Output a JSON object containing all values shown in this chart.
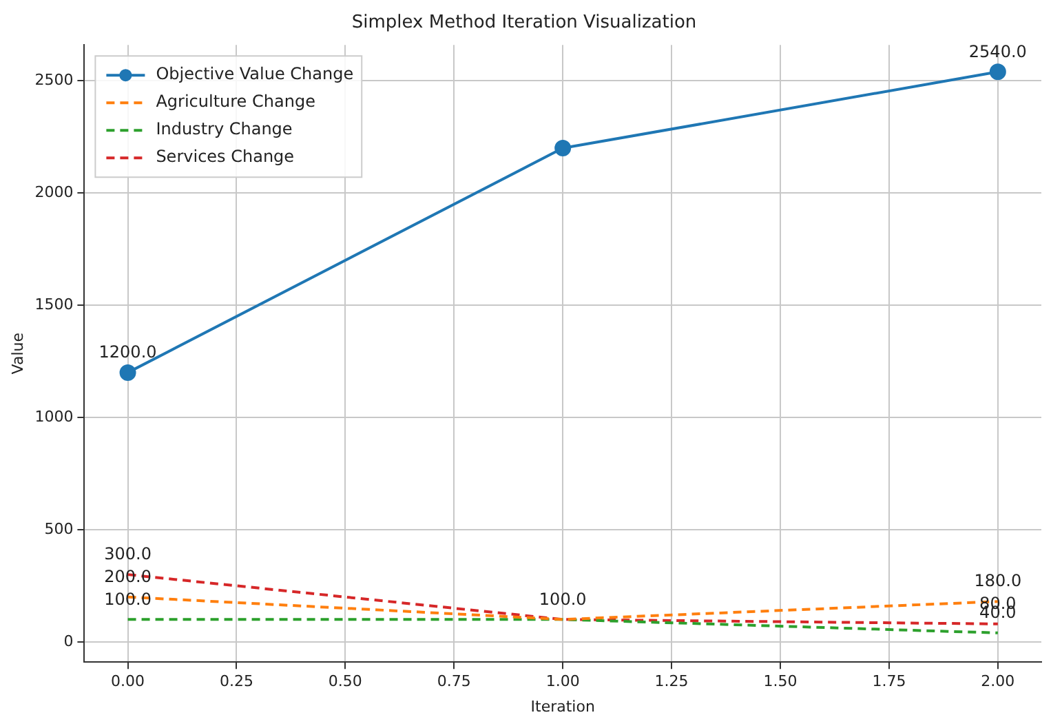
{
  "chart_data": {
    "type": "line",
    "title": "Simplex Method Iteration Visualization",
    "xlabel": "Iteration",
    "ylabel": "Value",
    "x": [
      0,
      1,
      2
    ],
    "series": [
      {
        "name": "Objective Value Change",
        "color": "#1f77b4",
        "values": [
          1200,
          2200,
          2540
        ],
        "marker": "circle",
        "line_style": "solid",
        "value_labels": [
          "1200.0",
          null,
          "2540.0"
        ]
      },
      {
        "name": "Agriculture Change",
        "color": "#ff7f0e",
        "values": [
          200,
          100,
          180
        ],
        "marker": "none",
        "line_style": "dashed",
        "value_labels": [
          "200.0",
          null,
          "180.0"
        ]
      },
      {
        "name": "Industry Change",
        "color": "#2ca02c",
        "values": [
          100,
          100,
          40
        ],
        "marker": "none",
        "line_style": "dashed",
        "value_labels": [
          "100.0",
          null,
          "40.0"
        ]
      },
      {
        "name": "Services Change",
        "color": "#d62728",
        "values": [
          300,
          100,
          80
        ],
        "marker": "none",
        "line_style": "dashed",
        "value_labels": [
          "300.0",
          "100.0",
          "80.0"
        ]
      }
    ],
    "xlim": [
      -0.1,
      2.1
    ],
    "xticks": [
      {
        "value": 0,
        "label": "0.00"
      },
      {
        "value": 0.25,
        "label": "0.25"
      },
      {
        "value": 0.5,
        "label": "0.50"
      },
      {
        "value": 0.75,
        "label": "0.75"
      },
      {
        "value": 1,
        "label": "1.00"
      },
      {
        "value": 1.25,
        "label": "1.25"
      },
      {
        "value": 1.5,
        "label": "1.50"
      },
      {
        "value": 1.75,
        "label": "1.75"
      },
      {
        "value": 2,
        "label": "2.00"
      }
    ],
    "ylim": [
      -90,
      2660
    ],
    "yticks": [
      0,
      500,
      1000,
      1500,
      2000,
      2500
    ],
    "grid": true,
    "legend": "top left"
  }
}
